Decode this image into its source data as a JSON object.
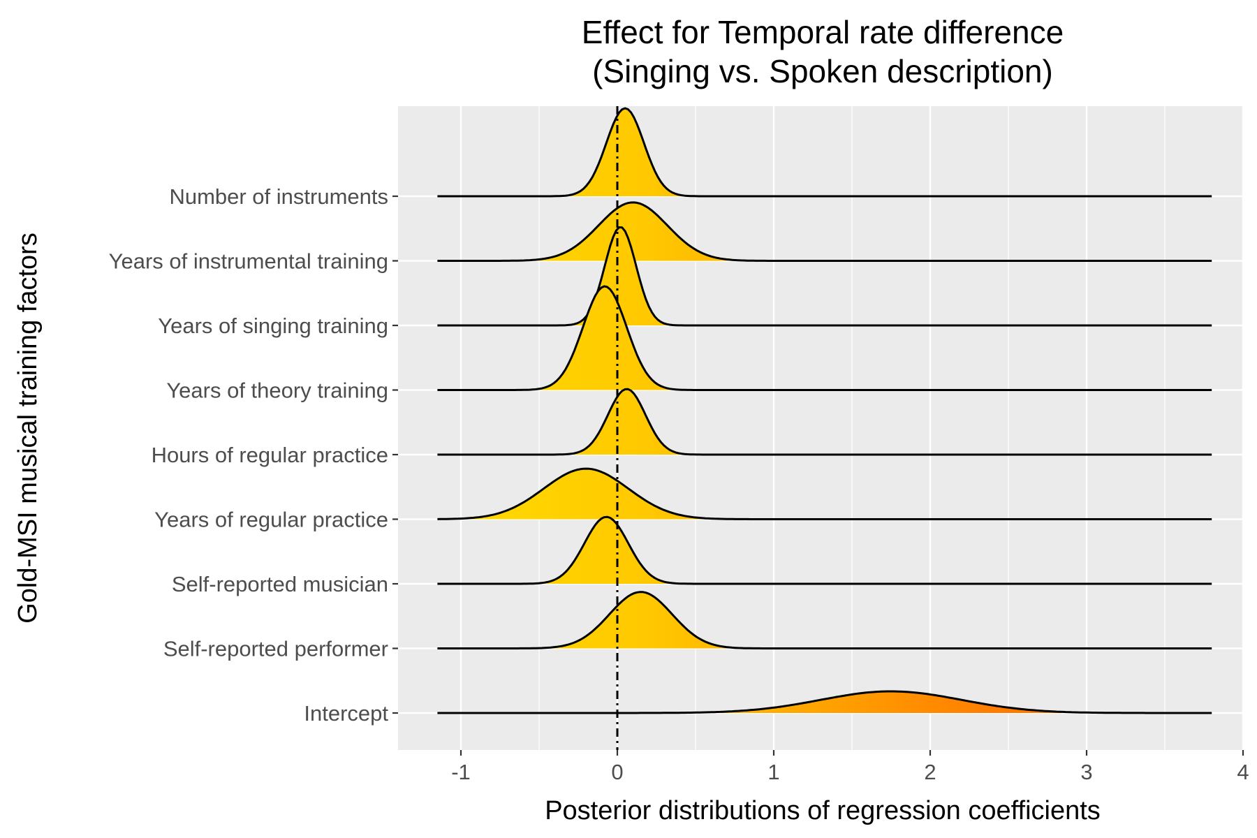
{
  "chart_data": {
    "type": "ridgeline",
    "title": [
      "Effect for Temporal rate difference",
      "(Singing vs. Spoken description)"
    ],
    "xlabel": "Posterior distributions of regression coefficients",
    "ylabel": "Gold-MSI musical training factors",
    "xlim": [
      -1.4,
      4.0
    ],
    "x_ticks": [
      -1,
      0,
      1,
      2,
      3,
      4
    ],
    "x_tick_labels": [
      "-1",
      "0",
      "1",
      "2",
      "3",
      "4"
    ],
    "reference_line": 0,
    "grid": true,
    "categories": [
      "Number of instruments",
      "Years of instrumental training",
      "Years of singing training",
      "Years of theory training",
      "Hours of regular practice",
      "Years of regular practice",
      "Self-reported musician",
      "Self-reported performer",
      "Intercept"
    ],
    "series": [
      {
        "category": "Number of instruments",
        "mean": 0.05,
        "sd": 0.12,
        "peak": 1.34
      },
      {
        "category": "Years of instrumental training",
        "mean": 0.1,
        "sd": 0.22,
        "peak": 0.89
      },
      {
        "category": "Years of singing training",
        "mean": 0.02,
        "sd": 0.1,
        "peak": 1.5
      },
      {
        "category": "Years of theory training",
        "mean": -0.08,
        "sd": 0.14,
        "peak": 1.58
      },
      {
        "category": "Hours of regular practice",
        "mean": 0.06,
        "sd": 0.12,
        "peak": 1.0
      },
      {
        "category": "Years of regular practice",
        "mean": -0.2,
        "sd": 0.27,
        "peak": 0.77
      },
      {
        "category": "Self-reported musician",
        "mean": -0.07,
        "sd": 0.14,
        "peak": 1.02
      },
      {
        "category": "Self-reported performer",
        "mean": 0.15,
        "sd": 0.2,
        "peak": 0.86
      },
      {
        "category": "Intercept",
        "mean": 1.75,
        "sd": 0.45,
        "peak": 0.33
      }
    ],
    "fill_gradient": [
      "#ffe000",
      "#ffc800",
      "#ff7a00"
    ]
  }
}
